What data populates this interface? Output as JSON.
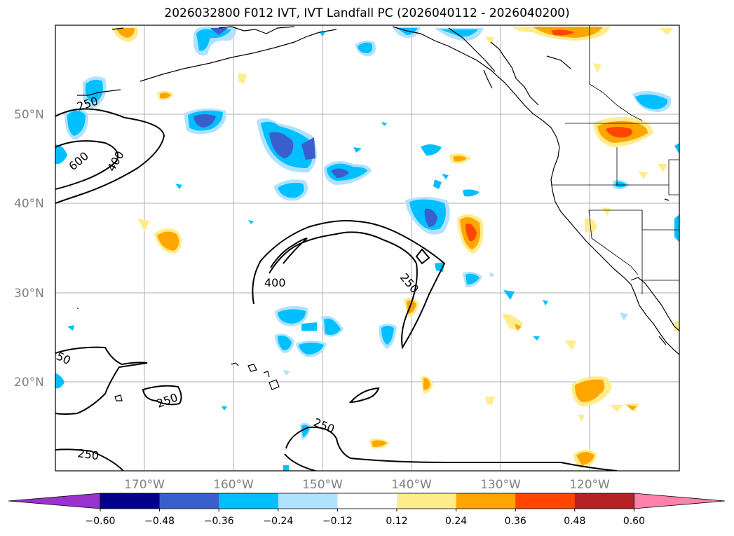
{
  "title": "2026032800 F012 IVT, IVT Landfall PC (2026040112 - 2026040200)",
  "lat_labels": [
    "50°N",
    "40°N",
    "30°N",
    "20°N"
  ],
  "lon_labels": [
    "170°W",
    "160°W",
    "150°W",
    "140°W",
    "130°W",
    "120°W"
  ],
  "colorbar": {
    "labels": [
      "−0.60",
      "−0.48",
      "−0.36",
      "−0.24",
      "−0.12",
      "0.12",
      "0.24",
      "0.36",
      "0.48",
      "0.60"
    ],
    "colors": [
      "#9a32cd",
      "#00008b",
      "#3a5fcd",
      "#00bfff",
      "#b0e2ff",
      "#ffffff",
      "#ffec8b",
      "#ffa500",
      "#ff4500",
      "#b22222",
      "#ff82ab"
    ]
  },
  "contour_labels": [
    "250",
    "600",
    "400",
    "400",
    "250",
    "50",
    "250",
    "250",
    "250"
  ],
  "colors": {
    "land_line": "#000000",
    "grid": "#b0b0b0",
    "contour": "#000000"
  }
}
